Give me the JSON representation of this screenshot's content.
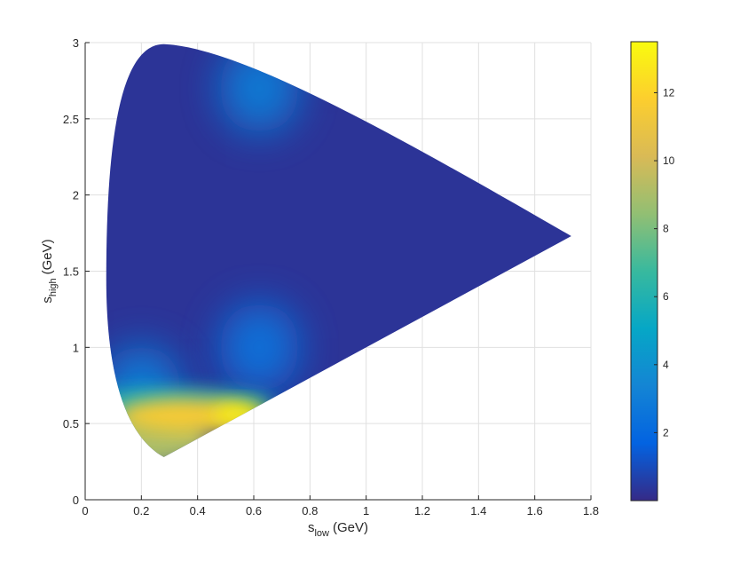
{
  "chart_data": {
    "type": "heatmap",
    "title": "",
    "xlabel": {
      "main": "s",
      "sub": "low",
      "unit": "(GeV)"
    },
    "ylabel": {
      "main": "s",
      "sub": "high",
      "unit": "(GeV)"
    },
    "xlim": [
      0,
      1.8
    ],
    "ylim": [
      0,
      3
    ],
    "xticks": [
      0,
      0.2,
      0.4,
      0.6,
      0.8,
      1,
      1.2,
      1.4,
      1.6,
      1.8
    ],
    "xtick_labels": [
      "0",
      "0.2",
      "0.4",
      "0.6",
      "0.8",
      "1",
      "1.2",
      "1.4",
      "1.6",
      "1.8"
    ],
    "yticks": [
      0,
      0.5,
      1,
      1.5,
      2,
      2.5,
      3
    ],
    "ytick_labels": [
      "0",
      "0.5",
      "1",
      "1.5",
      "2",
      "2.5",
      "3"
    ],
    "grid": true,
    "colormap": "parula",
    "colorbar": {
      "range": [
        0,
        13.5
      ],
      "ticks": [
        2,
        4,
        6,
        8,
        10,
        12
      ],
      "tick_labels": [
        "2",
        "4",
        "6",
        "8",
        "10",
        "12"
      ]
    },
    "region": {
      "description_points": [
        {
          "x": 0.075,
          "y": 1.45
        },
        {
          "x": 0.28,
          "y": 2.99
        },
        {
          "x": 1.73,
          "y": 1.73
        },
        {
          "x": 0.28,
          "y": 0.28
        }
      ]
    },
    "hotspots": [
      {
        "x": 0.35,
        "y": 0.55,
        "value": 11.5
      },
      {
        "x": 0.55,
        "y": 0.56,
        "value": 13.0
      },
      {
        "x": 0.22,
        "y": 0.42,
        "value": 9.0
      },
      {
        "x": 0.62,
        "y": 2.7,
        "value": 3.0
      },
      {
        "x": 0.62,
        "y": 1.0,
        "value": 2.5
      },
      {
        "x": 0.2,
        "y": 0.72,
        "value": 3.0
      }
    ],
    "background_value": 0.3
  },
  "colors": {
    "background": "#ffffff",
    "grid": "#e0e0e0",
    "axis": "#262626",
    "colormap_stops": [
      "#352a87",
      "#0363e1",
      "#1485d4",
      "#06a7c6",
      "#38b99e",
      "#92bf73",
      "#d9ba56",
      "#fcce2e",
      "#f9fb0e"
    ]
  }
}
